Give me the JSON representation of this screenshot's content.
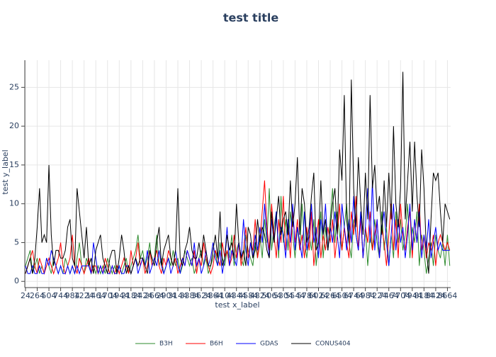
{
  "chart_data": {
    "type": "line",
    "title": "test title",
    "x_label": "test x_label",
    "y_label": "test y_label",
    "x": [
      24,
      72,
      120,
      168,
      216,
      264,
      312,
      360,
      408,
      456,
      504,
      552,
      600,
      648,
      696,
      744,
      792,
      840,
      888,
      936,
      984,
      1032,
      1080,
      1128,
      1176,
      1224,
      1272,
      1320,
      1368,
      1416,
      1464,
      1512,
      1560,
      1608,
      1656,
      1704,
      1752,
      1800,
      1848,
      1896,
      1944,
      1992,
      2040,
      2088,
      2136,
      2184,
      2232,
      2280,
      2328,
      2376,
      2424,
      2472,
      2520,
      2568,
      2616,
      2664,
      2712,
      2760,
      2808,
      2856,
      2904,
      2952,
      3000,
      3048,
      3096,
      3144,
      3192,
      3240,
      3288,
      3336,
      3384,
      3432,
      3480,
      3528,
      3576,
      3624,
      3672,
      3720,
      3768,
      3816,
      3864,
      3912,
      3960,
      4008,
      4056,
      4104,
      4152,
      4200,
      4248,
      4296,
      4344,
      4392,
      4440,
      4488,
      4536,
      4584,
      4632,
      4680,
      4728,
      4776,
      4824,
      4872,
      4920,
      4968,
      5016,
      5064,
      5112,
      5160,
      5208,
      5256,
      5304,
      5352,
      5400,
      5448,
      5496,
      5544,
      5592,
      5640,
      5688,
      5736,
      5784,
      5832,
      5880,
      5928,
      5976,
      6024,
      6072,
      6120,
      6168,
      6216,
      6264,
      6312,
      6360,
      6408,
      6456,
      6504,
      6552,
      6600,
      6648,
      6696,
      6744,
      6792,
      6840,
      6888,
      6936,
      6984,
      7032,
      7080,
      7128,
      7176,
      7224,
      7272,
      7320,
      7368,
      7416,
      7464,
      7512,
      7560,
      7608,
      7656,
      7704,
      7752,
      7800,
      7848,
      7896,
      7944,
      7992,
      8040,
      8088,
      8136,
      8184,
      8232,
      8280,
      8328,
      8376,
      8424,
      8472,
      8520,
      8568,
      8616,
      8664,
      8712
    ],
    "series": [
      {
        "name": "B3H",
        "color": "#2e8b2e",
        "values": [
          2,
          3,
          4,
          1,
          2,
          3,
          1,
          2,
          1,
          3,
          2,
          1,
          3,
          2,
          1,
          2,
          1,
          3,
          2,
          1,
          2,
          1,
          3,
          5,
          2,
          1,
          3,
          2,
          1,
          2,
          1,
          2,
          1,
          2,
          1,
          3,
          2,
          1,
          2,
          1,
          2,
          1,
          2,
          3,
          1,
          2,
          3,
          4,
          6,
          3,
          4,
          2,
          3,
          5,
          2,
          3,
          6,
          2,
          3,
          1,
          2,
          3,
          2,
          4,
          2,
          3,
          1,
          2,
          4,
          3,
          2,
          3,
          1,
          2,
          3,
          4,
          2,
          3,
          1,
          2,
          3,
          4,
          2,
          5,
          3,
          2,
          4,
          3,
          6,
          2,
          4,
          5,
          3,
          2,
          6,
          4,
          3,
          2,
          5,
          3,
          6,
          3,
          8,
          5,
          12,
          4,
          7,
          9,
          3,
          11,
          5,
          8,
          4,
          9,
          6,
          3,
          7,
          4,
          10,
          5,
          3,
          6,
          4,
          8,
          2,
          5,
          9,
          3,
          7,
          4,
          8,
          12,
          5,
          9,
          6,
          4,
          7,
          10,
          5,
          3,
          8,
          6,
          4,
          9,
          3,
          7,
          2,
          6,
          4,
          8,
          5,
          3,
          9,
          4,
          7,
          2,
          6,
          3,
          9,
          5,
          8,
          4,
          6,
          10,
          3,
          7,
          5,
          9,
          2,
          6,
          4,
          1,
          3,
          5,
          2,
          6,
          4,
          3,
          5,
          2,
          6,
          2
        ]
      },
      {
        "name": "B6H",
        "color": "#ff0000",
        "values": [
          1,
          2,
          3,
          4,
          2,
          1,
          3,
          2,
          1,
          2,
          3,
          2,
          1,
          2,
          3,
          5,
          2,
          1,
          2,
          3,
          6,
          2,
          1,
          3,
          2,
          1,
          2,
          3,
          1,
          2,
          2,
          1,
          2,
          1,
          3,
          2,
          1,
          2,
          1,
          2,
          1,
          2,
          3,
          2,
          1,
          4,
          2,
          3,
          5,
          2,
          3,
          1,
          2,
          4,
          2,
          3,
          4,
          2,
          1,
          3,
          2,
          4,
          3,
          2,
          3,
          1,
          2,
          3,
          2,
          4,
          3,
          2,
          4,
          1,
          3,
          2,
          5,
          3,
          2,
          1,
          2,
          4,
          3,
          2,
          5,
          3,
          4,
          2,
          3,
          6,
          3,
          5,
          2,
          4,
          7,
          3,
          5,
          4,
          8,
          3,
          5,
          9,
          13,
          7,
          4,
          10,
          6,
          3,
          8,
          5,
          11,
          4,
          7,
          3,
          9,
          5,
          8,
          4,
          6,
          3,
          7,
          4,
          9,
          2,
          5,
          8,
          3,
          6,
          4,
          7,
          5,
          8,
          3,
          6,
          10,
          4,
          7,
          5,
          3,
          9,
          6,
          11,
          4,
          8,
          3,
          7,
          5,
          9,
          4,
          6,
          8,
          3,
          7,
          5,
          2,
          6,
          10,
          4,
          8,
          3,
          10,
          6,
          4,
          7,
          9,
          3,
          8,
          5,
          10,
          4,
          6,
          3,
          5,
          4,
          6,
          2,
          5,
          6,
          5,
          4,
          5,
          4
        ]
      },
      {
        "name": "GDAS",
        "color": "#0000ff",
        "values": [
          2,
          1,
          1,
          2,
          1,
          1,
          2,
          1,
          1,
          3,
          2,
          4,
          3,
          2,
          1,
          2,
          1,
          1,
          2,
          1,
          2,
          1,
          2,
          1,
          2,
          2,
          2,
          2,
          1,
          5,
          3,
          1,
          2,
          1,
          2,
          1,
          1,
          2,
          1,
          1,
          2,
          1,
          1,
          2,
          2,
          1,
          2,
          3,
          1,
          2,
          3,
          2,
          4,
          1,
          2,
          3,
          2,
          4,
          2,
          1,
          2,
          3,
          1,
          2,
          4,
          2,
          1,
          3,
          2,
          4,
          3,
          2,
          5,
          2,
          3,
          1,
          2,
          4,
          2,
          3,
          5,
          3,
          2,
          4,
          1,
          3,
          7,
          2,
          4,
          3,
          2,
          5,
          3,
          8,
          4,
          2,
          5,
          3,
          6,
          4,
          7,
          5,
          10,
          6,
          3,
          8,
          5,
          9,
          4,
          7,
          6,
          3,
          8,
          5,
          10,
          4,
          7,
          5,
          3,
          9,
          4,
          6,
          10,
          5,
          7,
          3,
          8,
          6,
          10,
          4,
          7,
          5,
          9,
          6,
          3,
          10,
          7,
          4,
          8,
          5,
          11,
          6,
          4,
          9,
          3,
          7,
          12,
          5,
          13,
          4,
          8,
          3,
          7,
          9,
          5,
          2,
          6,
          10,
          4,
          8,
          5,
          7,
          3,
          6,
          10,
          4,
          8,
          5,
          9,
          3,
          6,
          4,
          8,
          3,
          5,
          7,
          4,
          5,
          4,
          4,
          4,
          4
        ]
      },
      {
        "name": "CONUS404",
        "color": "#000000",
        "values": [
          1,
          2,
          3,
          1,
          3,
          7,
          12,
          5,
          6,
          5,
          15,
          6,
          2,
          4,
          4,
          3,
          3,
          4,
          7,
          8,
          3,
          2,
          12,
          9,
          6,
          3,
          7,
          2,
          3,
          1,
          4,
          5,
          6,
          3,
          2,
          1,
          3,
          4,
          4,
          1,
          3,
          6,
          4,
          1,
          2,
          1,
          2,
          3,
          2,
          3,
          3,
          2,
          1,
          4,
          3,
          2,
          5,
          7,
          2,
          4,
          5,
          6,
          3,
          2,
          4,
          12,
          3,
          2,
          4,
          5,
          7,
          4,
          3,
          3,
          5,
          3,
          6,
          4,
          2,
          2,
          4,
          6,
          3,
          9,
          2,
          3,
          6,
          4,
          5,
          3,
          10,
          5,
          3,
          4,
          2,
          7,
          6,
          3,
          4,
          8,
          5,
          7,
          6,
          4,
          3,
          9,
          5,
          8,
          11,
          6,
          8,
          9,
          6,
          13,
          7,
          10,
          16,
          6,
          12,
          10,
          5,
          7,
          11,
          14,
          4,
          5,
          13,
          6,
          8,
          4,
          7,
          10,
          12,
          6,
          17,
          13,
          24,
          8,
          5,
          26,
          12,
          7,
          16,
          10,
          6,
          14,
          8,
          24,
          12,
          15,
          9,
          11,
          6,
          13,
          7,
          14,
          8,
          20,
          10,
          7,
          12,
          27,
          8,
          13,
          18,
          9,
          18,
          11,
          7,
          17,
          12,
          4,
          1,
          8,
          14,
          13,
          14,
          9,
          5,
          10,
          9,
          8
        ]
      }
    ],
    "xlim": [
      10,
      8730
    ],
    "xticks": [
      24,
      264,
      504,
      744,
      984,
      1224,
      1464,
      1704,
      1944,
      2184,
      2424,
      2664,
      2904,
      3144,
      3384,
      3624,
      3864,
      4104,
      4344,
      4584,
      4824,
      5064,
      5304,
      5544,
      5784,
      6024,
      6264,
      6504,
      6744,
      6984,
      7224,
      7464,
      7704,
      7944,
      8184,
      8424,
      8664
    ],
    "ylim": [
      -0.8,
      28.5
    ],
    "yticks": [
      0,
      5,
      10,
      15,
      20,
      25
    ],
    "grid": true,
    "legend": "bottom"
  }
}
